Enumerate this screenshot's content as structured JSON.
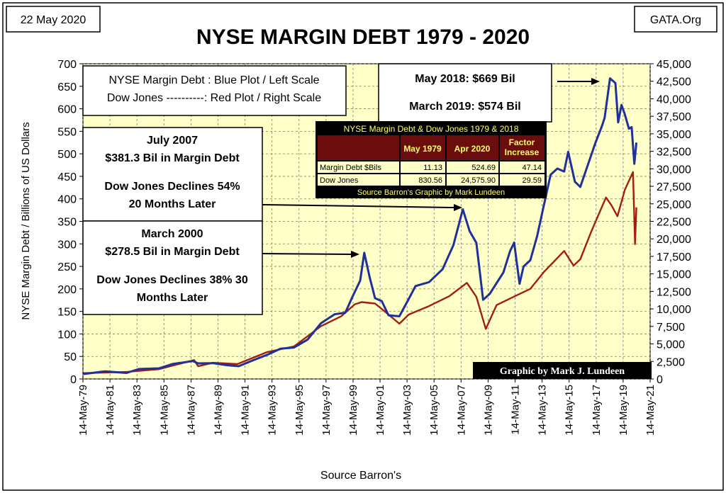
{
  "date_label": "22 May 2020",
  "site_label": "GATA.Org",
  "credit": "Graphic by Mark J. Lundeen",
  "legend": {
    "line1": "NYSE Margin Debt : Blue Plot / Left Scale",
    "line2": "Dow Jones ----------: Red Plot / Right Scale"
  },
  "notes": {
    "peak_2018": "May 2018: $669 Bil",
    "march_2019": "March 2019: $574 Bil",
    "july_2007": [
      "July 2007",
      "$381.3 Bil in Margin Debt",
      "Dow Jones Declines 54%",
      "20 Months Later"
    ],
    "march_2000": [
      "March 2000",
      "$278.5 Bil in Margin Debt",
      "Dow Jones Declines 38% 30",
      "Months Later"
    ]
  },
  "table": {
    "title": "NYSE Margin Debt & Dow Jones 1979 & 2018",
    "headers": [
      "",
      "May 1979",
      "Apr 2020",
      "Factor Increase"
    ],
    "rows": [
      [
        "Margin Debt $Bils",
        "11.13",
        "524.69",
        "47.14"
      ],
      [
        "Dow Jones",
        "830.56",
        "24,575.90",
        "29.59"
      ]
    ],
    "source": "Source Barron's Graphic by Mark Lundeen"
  },
  "colors": {
    "plot_bg": "#ffffc8",
    "margin_debt": "#1f2f9c",
    "dow_jones": "#a21d12",
    "table_header": "#6b0d0d",
    "table_header_text": "#ffff66",
    "table_bg": "#000000"
  },
  "chart_data": {
    "type": "line",
    "title": "NYSE MARGIN DEBT 1979 - 2020",
    "xlabel": "Source Barron's",
    "ylabel": "NYSE Margin Debt / Billions of US Dollars",
    "ylim": [
      0,
      700
    ],
    "y2lim": [
      0,
      45000
    ],
    "xlim": [
      1979.37,
      2021.37
    ],
    "grid": true,
    "x_tick_labels": [
      "14-May-79",
      "14-May-81",
      "14-May-83",
      "14-May-85",
      "14-May-87",
      "14-May-89",
      "14-May-91",
      "14-May-93",
      "14-May-95",
      "14-May-97",
      "14-May-99",
      "14-May-01",
      "14-May-03",
      "14-May-05",
      "14-May-07",
      "14-May-09",
      "14-May-11",
      "14-May-13",
      "14-May-15",
      "14-May-17",
      "14-May-19",
      "14-May-21"
    ],
    "y_ticks": [
      0,
      50,
      100,
      150,
      200,
      250,
      300,
      350,
      400,
      450,
      500,
      550,
      600,
      650,
      700
    ],
    "y2_tick_labels": [
      "0",
      "2,500",
      "5,000",
      "7,500",
      "10,000",
      "12,500",
      "15,000",
      "17,500",
      "20,000",
      "22,500",
      "25,000",
      "27,500",
      "30,000",
      "32,500",
      "35,000",
      "37,500",
      "40,000",
      "42,500",
      "45,000"
    ],
    "series": [
      {
        "name": "NYSE Margin Debt",
        "axis": "left",
        "x": [
          1979.4,
          1981.0,
          1982.6,
          1983.5,
          1985.0,
          1986.0,
          1987.5,
          1987.9,
          1989.0,
          1990.0,
          1990.9,
          1992.0,
          1993.0,
          1994.0,
          1995.0,
          1996.0,
          1997.0,
          1998.0,
          1998.8,
          1999.3,
          1999.9,
          2000.2,
          2000.6,
          2001.0,
          2001.5,
          2002.0,
          2002.8,
          2003.5,
          2004.0,
          2005.0,
          2006.0,
          2006.8,
          2007.5,
          2008.0,
          2008.5,
          2009.0,
          2009.5,
          2010.0,
          2010.5,
          2011.0,
          2011.3,
          2011.7,
          2012.0,
          2012.5,
          2013.0,
          2013.5,
          2014.0,
          2014.5,
          2015.0,
          2015.3,
          2015.8,
          2016.2,
          2016.8,
          2017.3,
          2017.8,
          2018.0,
          2018.4,
          2018.8,
          2019.0,
          2019.25,
          2019.5,
          2019.8,
          2020.0,
          2020.2,
          2020.35
        ],
        "values": [
          11,
          14,
          12,
          22,
          25,
          36,
          44,
          31,
          33,
          30,
          29,
          44,
          57,
          63,
          67,
          86,
          124,
          145,
          150,
          185,
          215,
          278,
          225,
          180,
          175,
          145,
          135,
          175,
          205,
          215,
          245,
          300,
          381,
          325,
          300,
          175,
          190,
          215,
          240,
          280,
          300,
          210,
          250,
          265,
          320,
          390,
          450,
          465,
          460,
          505,
          440,
          430,
          475,
          520,
          560,
          580,
          669,
          660,
          574,
          605,
          585,
          555,
          560,
          480,
          525
        ]
      },
      {
        "name": "Dow Jones",
        "axis": "right",
        "x": [
          1979.4,
          1982.6,
          1985.0,
          1987.6,
          1987.9,
          1989.0,
          1990.8,
          1993.0,
          1995.0,
          1997.0,
          1998.5,
          1999.5,
          2000.0,
          2001.0,
          2001.7,
          2002.8,
          2003.5,
          2005.0,
          2006.5,
          2007.8,
          2008.5,
          2009.2,
          2010.0,
          2011.5,
          2012.5,
          2013.5,
          2015.0,
          2015.7,
          2016.2,
          2017.0,
          2018.1,
          2018.5,
          2018.95,
          2019.5,
          2020.1,
          2020.25,
          2020.35
        ],
        "values": [
          830,
          820,
          1300,
          2700,
          1900,
          2500,
          2400,
          3600,
          4500,
          7500,
          9000,
          10800,
          11200,
          10500,
          9500,
          7800,
          9200,
          10500,
          12000,
          14000,
          11500,
          7000,
          10500,
          12000,
          13000,
          15500,
          18000,
          16000,
          17000,
          21000,
          26000,
          25000,
          23500,
          26800,
          29400,
          19200,
          24500
        ]
      }
    ]
  }
}
